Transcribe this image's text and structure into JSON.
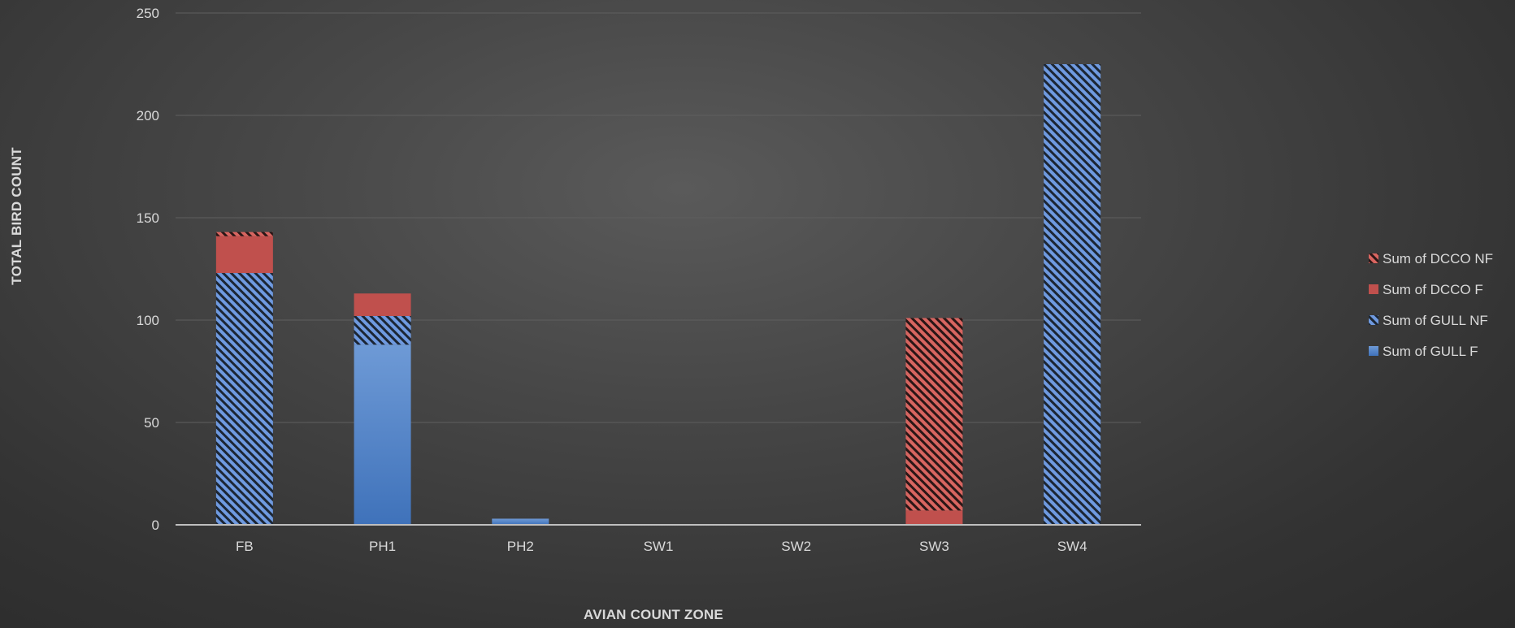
{
  "chart_data": {
    "type": "bar",
    "stacked": true,
    "categories": [
      "FB",
      "PH1",
      "PH2",
      "SW1",
      "SW2",
      "SW3",
      "SW4"
    ],
    "series": [
      {
        "name": "Sum of GULL F",
        "values": [
          0,
          88,
          3,
          0,
          0,
          0,
          0
        ],
        "color": "#4a7ec4",
        "pattern": "solid"
      },
      {
        "name": "Sum of GULL NF",
        "values": [
          123,
          14,
          0,
          0,
          0,
          0,
          225
        ],
        "color": "#5b8fd4",
        "pattern": "hatch"
      },
      {
        "name": "Sum of DCCO F",
        "values": [
          18,
          11,
          0,
          0,
          0,
          7,
          0
        ],
        "color": "#c0504d",
        "pattern": "solid"
      },
      {
        "name": "Sum of DCCO NF",
        "values": [
          2,
          0,
          0,
          0,
          0,
          94,
          0
        ],
        "color": "#d05a57",
        "pattern": "hatch"
      }
    ],
    "ylim": [
      0,
      250
    ],
    "yticks": [
      "0",
      "50",
      "100",
      "150",
      "200",
      "250"
    ],
    "xlabel": "AVIAN COUNT ZONE",
    "ylabel": "TOTAL BIRD COUNT",
    "legend_position": "right",
    "legend_order": [
      "Sum of DCCO NF",
      "Sum of DCCO F",
      "Sum of GULL NF",
      "Sum of GULL F"
    ],
    "grid": true
  }
}
